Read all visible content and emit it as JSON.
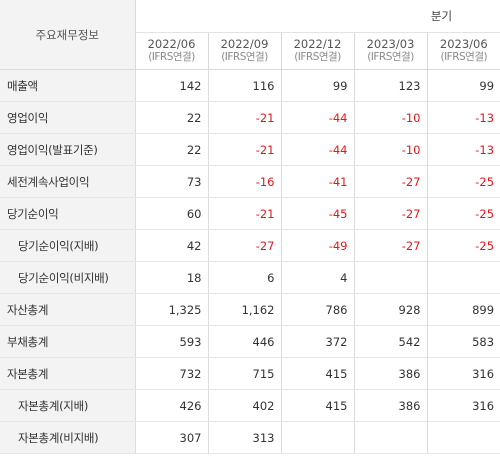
{
  "header": {
    "corner_label": "주요재무정보",
    "group_label": "분기",
    "periods": [
      {
        "date": "2022/06",
        "basis": "(IFRS연결)"
      },
      {
        "date": "2022/09",
        "basis": "(IFRS연결)"
      },
      {
        "date": "2022/12",
        "basis": "(IFRS연결)"
      },
      {
        "date": "2023/03",
        "basis": "(IFRS연결)"
      },
      {
        "date": "2023/06",
        "basis": "(IFRS연결)"
      }
    ]
  },
  "rows": [
    {
      "label": "매출액",
      "indent": false,
      "values": [
        "142",
        "116",
        "99",
        "123",
        "99"
      ]
    },
    {
      "label": "영업이익",
      "indent": false,
      "values": [
        "22",
        "-21",
        "-44",
        "-10",
        "-13"
      ]
    },
    {
      "label": "영업이익(발표기준)",
      "indent": false,
      "values": [
        "22",
        "-21",
        "-44",
        "-10",
        "-13"
      ]
    },
    {
      "label": "세전계속사업이익",
      "indent": false,
      "values": [
        "73",
        "-16",
        "-41",
        "-27",
        "-25"
      ]
    },
    {
      "label": "당기순이익",
      "indent": false,
      "values": [
        "60",
        "-21",
        "-45",
        "-27",
        "-25"
      ]
    },
    {
      "label": "당기순이익(지배)",
      "indent": true,
      "values": [
        "42",
        "-27",
        "-49",
        "-27",
        "-25"
      ]
    },
    {
      "label": "당기순이익(비지배)",
      "indent": true,
      "values": [
        "18",
        "6",
        "4",
        "",
        ""
      ]
    },
    {
      "label": "자산총계",
      "indent": false,
      "values": [
        "1,325",
        "1,162",
        "786",
        "928",
        "899"
      ]
    },
    {
      "label": "부채총계",
      "indent": false,
      "values": [
        "593",
        "446",
        "372",
        "542",
        "583"
      ]
    },
    {
      "label": "자본총계",
      "indent": false,
      "values": [
        "732",
        "715",
        "415",
        "386",
        "316"
      ]
    },
    {
      "label": "자본총계(지배)",
      "indent": true,
      "values": [
        "426",
        "402",
        "415",
        "386",
        "316"
      ]
    },
    {
      "label": "자본총계(비지배)",
      "indent": true,
      "values": [
        "307",
        "313",
        "",
        "",
        ""
      ]
    }
  ],
  "colors": {
    "negative": "#e0191b",
    "label_background": "#f3f3f3",
    "grid_line": "#e6e6e6"
  }
}
